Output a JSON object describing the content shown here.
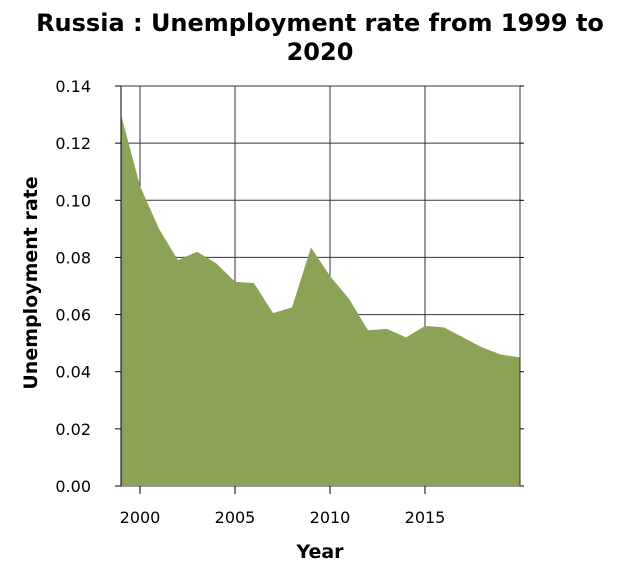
{
  "chart_data": {
    "type": "area",
    "title_lines": [
      "Russia : Unemployment rate from 1999 to",
      "2020"
    ],
    "xlabel": "Year",
    "ylabel": "Unemployment rate",
    "xlim": [
      1999,
      2020
    ],
    "ylim": [
      0,
      0.14
    ],
    "x_ticks": [
      2000,
      2005,
      2010,
      2015
    ],
    "x_tick_labels": [
      "2000",
      "2005",
      "2010",
      "2015"
    ],
    "y_ticks": [
      0,
      0.02,
      0.04,
      0.06,
      0.08,
      0.1,
      0.12,
      0.14
    ],
    "y_tick_labels": [
      "0.00",
      "0.02",
      "0.04",
      "0.06",
      "0.08",
      "0.10",
      "0.12",
      "0.14"
    ],
    "grid": true,
    "fill_color": "#8aa356",
    "series": [
      {
        "x": [
          1999,
          2000,
          2001,
          2002,
          2003,
          2004,
          2005,
          2006,
          2007,
          2008,
          2009,
          2010,
          2011,
          2012,
          2013,
          2014,
          2015,
          2016,
          2017,
          2018,
          2019,
          2020
        ],
        "values": [
          0.13,
          0.105,
          0.09,
          0.079,
          0.082,
          0.078,
          0.0715,
          0.071,
          0.0605,
          0.0625,
          0.0835,
          0.0735,
          0.0655,
          0.0545,
          0.055,
          0.052,
          0.056,
          0.0555,
          0.052,
          0.0485,
          0.046,
          0.045
        ]
      }
    ]
  }
}
